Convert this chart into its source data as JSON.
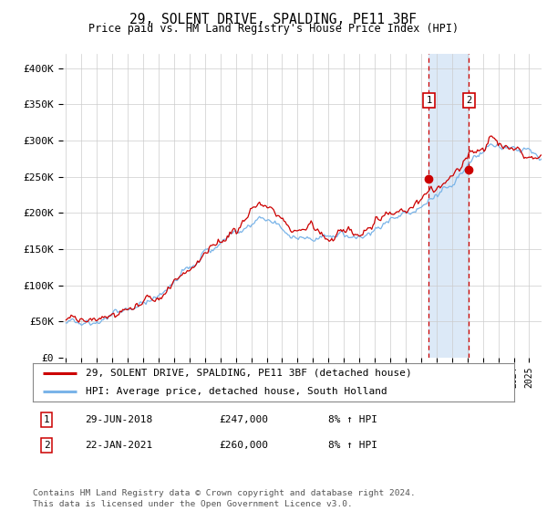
{
  "title": "29, SOLENT DRIVE, SPALDING, PE11 3BF",
  "subtitle": "Price paid vs. HM Land Registry's House Price Index (HPI)",
  "footer": "Contains HM Land Registry data © Crown copyright and database right 2024.\nThis data is licensed under the Open Government Licence v3.0.",
  "legend_line1": "29, SOLENT DRIVE, SPALDING, PE11 3BF (detached house)",
  "legend_line2": "HPI: Average price, detached house, South Holland",
  "marker1_label": "1",
  "marker1_date": "29-JUN-2018",
  "marker1_price": "£247,000",
  "marker1_hpi": "8% ↑ HPI",
  "marker2_label": "2",
  "marker2_date": "22-JAN-2021",
  "marker2_price": "£260,000",
  "marker2_hpi": "8% ↑ HPI",
  "marker1_x": 2018.5,
  "marker2_x": 2021.1,
  "shade_color": "#dce9f7",
  "line1_color": "#cc0000",
  "line2_color": "#7ab4e8",
  "ylim": [
    0,
    420000
  ],
  "yticks": [
    0,
    50000,
    100000,
    150000,
    200000,
    250000,
    300000,
    350000,
    400000
  ],
  "ytick_labels": [
    "£0",
    "£50K",
    "£100K",
    "£150K",
    "£200K",
    "£250K",
    "£300K",
    "£350K",
    "£400K"
  ],
  "xmin": 1994.8,
  "xmax": 2025.8,
  "marker_dot1_x": 2018.5,
  "marker_dot1_y": 247000,
  "marker_dot2_x": 2021.1,
  "marker_dot2_y": 260000
}
